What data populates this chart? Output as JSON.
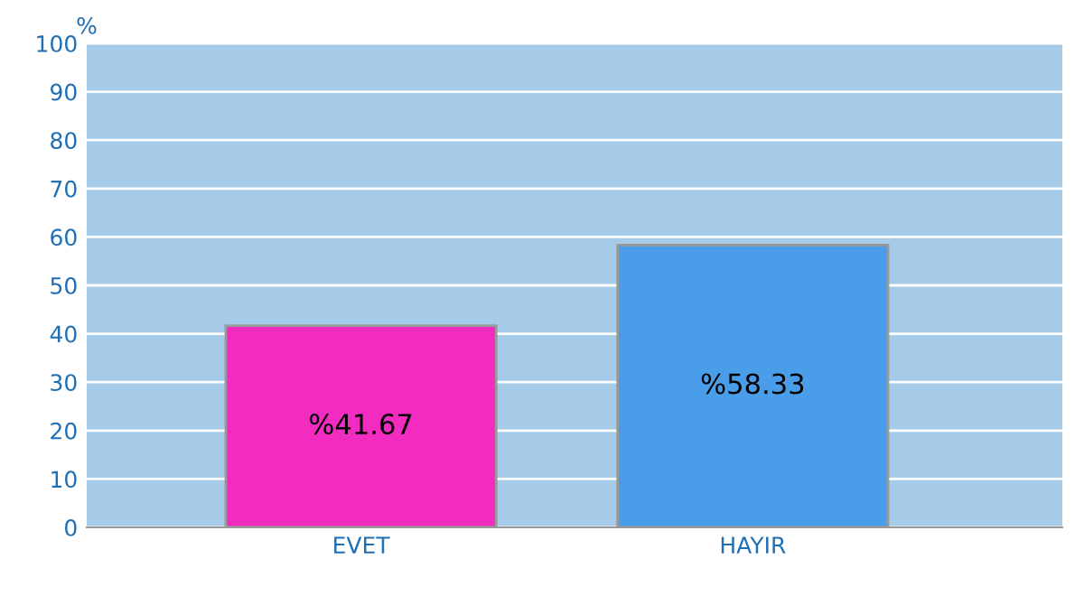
{
  "chart_data": {
    "type": "bar",
    "ylabel": "%",
    "categories": [
      "EVET",
      "HAYIR"
    ],
    "values": [
      41.67,
      58.33
    ],
    "colors": [
      "#f22cc0",
      "#4a9de8"
    ],
    "value_labels": [
      "%41.67",
      "%58.33"
    ],
    "ylim": [
      0,
      100
    ],
    "yticks": [
      0,
      10,
      20,
      30,
      40,
      50,
      60,
      70,
      80,
      90,
      100
    ],
    "grid": "y",
    "legend": false
  }
}
